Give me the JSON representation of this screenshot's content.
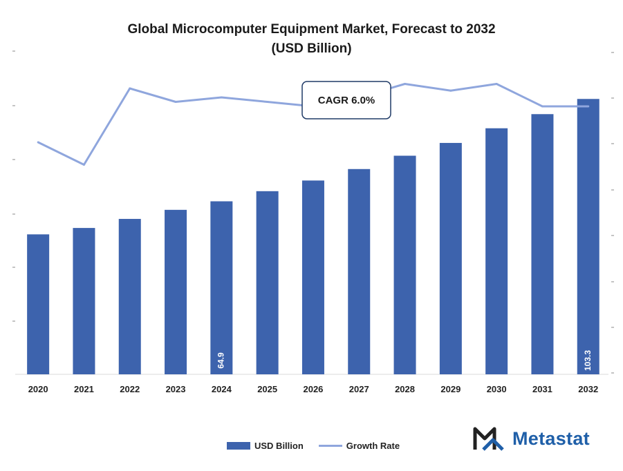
{
  "chart_data": {
    "type": "bar",
    "title": "Global Microcomputer Equipment Market, Forecast to 2032",
    "subtitle": "(USD Billion)",
    "categories": [
      "2020",
      "2021",
      "2022",
      "2023",
      "2024",
      "2025",
      "2026",
      "2027",
      "2028",
      "2029",
      "2030",
      "2031",
      "2032"
    ],
    "series": [
      {
        "name": "USD Billion",
        "type": "bar",
        "color": "#3d63ad",
        "values": [
          52.5,
          54.9,
          58.3,
          61.7,
          64.9,
          68.7,
          72.7,
          77.0,
          82.0,
          86.8,
          92.3,
          97.6,
          103.3
        ]
      },
      {
        "name": "Growth Rate",
        "type": "line",
        "color": "#8fa6dd",
        "values": [
          5.0,
          4.5,
          6.2,
          5.9,
          6.0,
          5.9,
          5.8,
          6.0,
          6.3,
          6.15,
          6.3,
          5.8,
          5.8
        ]
      }
    ],
    "data_labels": [
      {
        "index": 4,
        "text": "64.9"
      },
      {
        "index": 12,
        "text": "103.3"
      }
    ],
    "annotation": "CAGR 6.0%",
    "legend_position": "bottom",
    "grid": false
  },
  "brand": {
    "name": "Metastat",
    "color": "#1f5fa8"
  }
}
